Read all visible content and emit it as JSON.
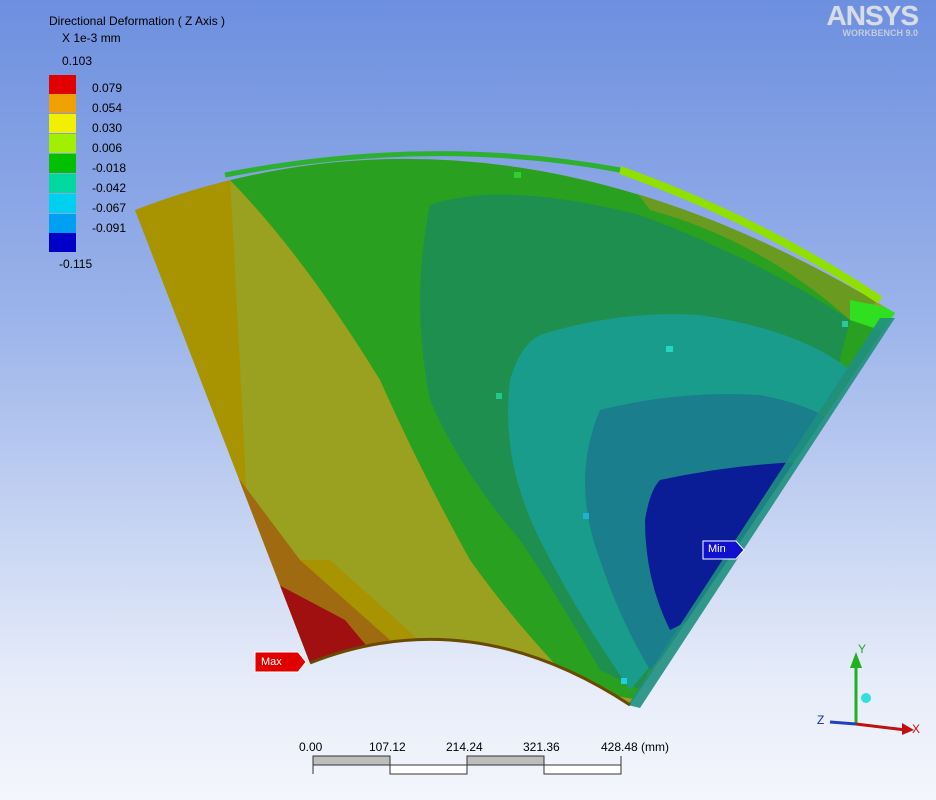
{
  "plot": {
    "title": "Directional Deformation ( Z Axis )",
    "units": "X 1e-3 mm",
    "legend_max": "0.103",
    "legend_min": "-0.115",
    "legend_values": [
      "0.079",
      "0.054",
      "0.030",
      "0.006",
      "-0.018",
      "-0.042",
      "-0.067",
      "-0.091"
    ],
    "legend_colors": [
      "#e00000",
      "#f0a000",
      "#f0f000",
      "#a0f000",
      "#00c000",
      "#00d8a0",
      "#00d0f0",
      "#00a0f0",
      "#0000c8"
    ]
  },
  "logo": {
    "brand": "ANSYS",
    "product": "WORKBENCH 9.0"
  },
  "probes": {
    "max_label": "Max",
    "min_label": "Min"
  },
  "triad": {
    "x": "X",
    "y": "Y",
    "z": "Z"
  },
  "scale_bar": {
    "ticks": [
      "0.00",
      "107.12",
      "214.24",
      "321.36",
      "428.48 (mm)"
    ]
  }
}
